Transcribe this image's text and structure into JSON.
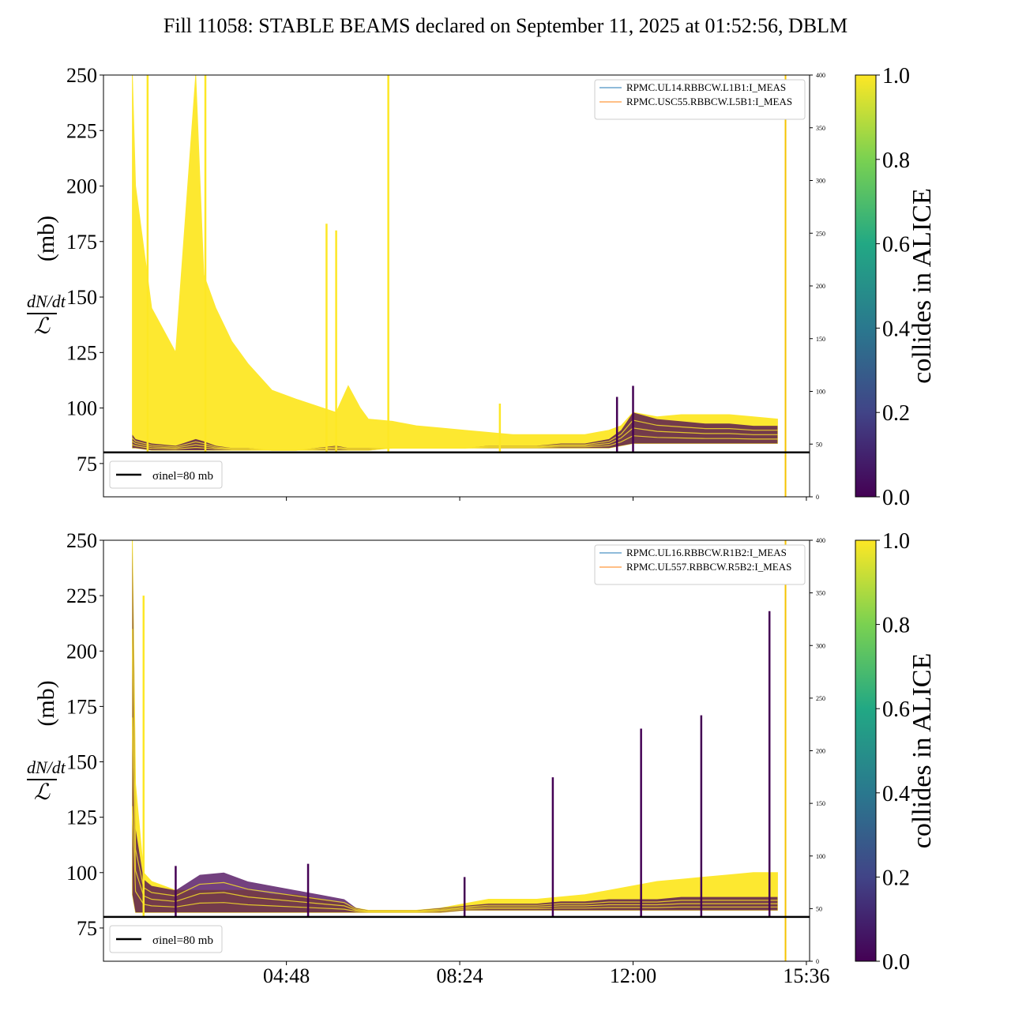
{
  "figure_title": "Fill 11058: STABLE BEAMS declared on September 11, 2025 at 01:52:56, DBLM",
  "colorbar": {
    "label": "collides in ALICE",
    "ticks": [
      "0.0",
      "0.2",
      "0.4",
      "0.6",
      "0.8",
      "1.0"
    ],
    "colormap": [
      "#440154",
      "#414487",
      "#2a788e",
      "#22a884",
      "#7ad151",
      "#fde725"
    ]
  },
  "ylabel": {
    "numerator": "dN/dt",
    "denominator": "ℒ",
    "unit": "(mb)"
  },
  "reference_legend": "σinel=80 mb",
  "chart_data": [
    {
      "type": "line",
      "panel": "top",
      "ylim": [
        60,
        250
      ],
      "yticks": [
        75,
        100,
        125,
        150,
        175,
        200,
        225,
        250
      ],
      "secondary_ylim": [
        0,
        400
      ],
      "secondary_yticks": [
        0,
        50,
        100,
        150,
        200,
        250,
        300,
        350,
        400
      ],
      "xlim": [
        "01:00",
        "15:40"
      ],
      "xticks": [
        "04:48",
        "08:24",
        "12:00",
        "15:36"
      ],
      "show_xtick_labels": false,
      "reference_line": 80,
      "legend": [
        "RPMC.UL14.RBBCW.L1B1:I_MEAS",
        "RPMC.USC55.RBBCW.L5B1:I_MEAS"
      ],
      "legend_colors": [
        "#1f77b4",
        "#ff7f0e"
      ],
      "series_envelope": {
        "time": [
          "01:36",
          "01:40",
          "02:00",
          "02:30",
          "02:55",
          "03:05",
          "03:20",
          "03:40",
          "04:00",
          "04:30",
          "05:00",
          "05:50",
          "06:05",
          "06:20",
          "06:30",
          "07:00",
          "07:30",
          "08:00",
          "08:30",
          "09:00",
          "09:30",
          "10:00",
          "10:30",
          "11:00",
          "11:30",
          "11:45",
          "12:00",
          "12:30",
          "13:00",
          "13:30",
          "14:00",
          "14:30",
          "15:00"
        ],
        "yellow_max": [
          250,
          200,
          145,
          125,
          250,
          160,
          145,
          130,
          120,
          108,
          104,
          98,
          110,
          100,
          95,
          94,
          92,
          91,
          90,
          89,
          88,
          88,
          88,
          88,
          90,
          92,
          98,
          96,
          97,
          97,
          97,
          96,
          95
        ],
        "purple_max": [
          88,
          86,
          84,
          83,
          86,
          85,
          83,
          82,
          82,
          81,
          81,
          83,
          82,
          82,
          82,
          82,
          82,
          82,
          82,
          83,
          83,
          83,
          84,
          84,
          86,
          90,
          98,
          95,
          94,
          93,
          93,
          92,
          92
        ],
        "base": [
          82,
          82,
          81,
          81,
          81,
          81,
          81,
          81,
          81,
          81,
          81,
          81,
          81,
          81,
          81,
          82,
          82,
          82,
          82,
          82,
          82,
          82,
          82,
          82,
          82,
          83,
          84,
          84,
          84,
          84,
          84,
          84,
          84
        ]
      },
      "spikes": [
        {
          "time": "01:55",
          "value": 250,
          "color": "yellow"
        },
        {
          "time": "03:07",
          "value": 250,
          "color": "yellow"
        },
        {
          "time": "05:38",
          "value": 183,
          "color": "yellow"
        },
        {
          "time": "05:50",
          "value": 180,
          "color": "yellow"
        },
        {
          "time": "06:55",
          "value": 250,
          "color": "yellow"
        },
        {
          "time": "09:14",
          "value": 102,
          "color": "yellow"
        },
        {
          "time": "11:40",
          "value": 105,
          "color": "purple"
        },
        {
          "time": "12:00",
          "value": 110,
          "color": "purple"
        }
      ],
      "end_marker_time": "15:10"
    },
    {
      "type": "line",
      "panel": "bottom",
      "ylim": [
        60,
        250
      ],
      "yticks": [
        75,
        100,
        125,
        150,
        175,
        200,
        225,
        250
      ],
      "secondary_ylim": [
        0,
        400
      ],
      "secondary_yticks": [
        0,
        50,
        100,
        150,
        200,
        250,
        300,
        350,
        400
      ],
      "xlim": [
        "01:00",
        "15:40"
      ],
      "xticks": [
        "04:48",
        "08:24",
        "12:00",
        "15:36"
      ],
      "show_xtick_labels": true,
      "reference_line": 80,
      "legend": [
        "RPMC.UL16.RBBCW.R1B2:I_MEAS",
        "RPMC.UL557.RBBCW.R5B2:I_MEAS"
      ],
      "legend_colors": [
        "#1f77b4",
        "#ff7f0e"
      ],
      "series_envelope": {
        "time": [
          "01:36",
          "01:40",
          "01:50",
          "02:00",
          "02:30",
          "03:00",
          "03:30",
          "04:00",
          "04:30",
          "05:00",
          "05:30",
          "06:00",
          "06:15",
          "06:30",
          "07:00",
          "07:30",
          "08:00",
          "08:30",
          "09:00",
          "09:30",
          "10:00",
          "10:30",
          "11:00",
          "11:30",
          "12:00",
          "12:30",
          "13:00",
          "13:30",
          "14:00",
          "14:30",
          "15:00"
        ],
        "yellow_max": [
          250,
          140,
          100,
          96,
          92,
          92,
          92,
          92,
          90,
          90,
          88,
          86,
          84,
          83,
          83,
          83,
          84,
          86,
          88,
          88,
          88,
          89,
          90,
          92,
          94,
          96,
          97,
          98,
          99,
          100,
          100
        ],
        "purple_max": [
          250,
          120,
          97,
          94,
          92,
          99,
          100,
          96,
          94,
          92,
          90,
          88,
          84,
          83,
          83,
          83,
          84,
          85,
          86,
          86,
          86,
          87,
          87,
          88,
          88,
          88,
          89,
          89,
          89,
          89,
          89
        ],
        "base": [
          90,
          82,
          82,
          82,
          82,
          82,
          82,
          82,
          82,
          82,
          82,
          82,
          82,
          82,
          82,
          82,
          82,
          83,
          83,
          83,
          83,
          83,
          83,
          83,
          83,
          83,
          83,
          83,
          83,
          83,
          83
        ]
      },
      "spikes": [
        {
          "time": "01:50",
          "value": 225,
          "color": "yellow"
        },
        {
          "time": "02:30",
          "value": 103,
          "color": "purple"
        },
        {
          "time": "05:15",
          "value": 104,
          "color": "purple"
        },
        {
          "time": "08:30",
          "value": 98,
          "color": "purple"
        },
        {
          "time": "10:20",
          "value": 143,
          "color": "purple"
        },
        {
          "time": "12:10",
          "value": 165,
          "color": "purple"
        },
        {
          "time": "13:25",
          "value": 171,
          "color": "purple"
        },
        {
          "time": "14:50",
          "value": 218,
          "color": "purple"
        }
      ],
      "end_marker_time": "15:10"
    }
  ]
}
